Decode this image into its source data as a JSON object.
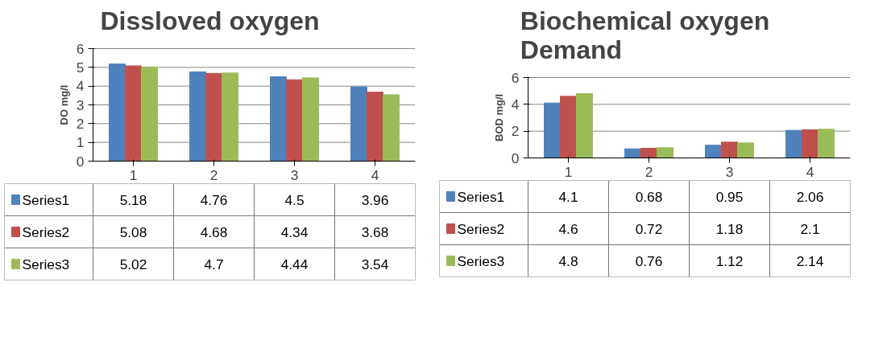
{
  "chart_data": [
    {
      "type": "bar",
      "title": "Dissloved oxygen",
      "ylabel": "DO mg/l",
      "categories": [
        "1",
        "2",
        "3",
        "4"
      ],
      "ylim": [
        0,
        6
      ],
      "yticks": [
        0,
        1,
        2,
        3,
        4,
        5,
        6
      ],
      "grid": "y",
      "legend": "bottom",
      "data_labels": true,
      "series": [
        {
          "name": "Series1",
          "color": "#4f81bd",
          "values": [
            5.18,
            4.76,
            4.5,
            3.96
          ]
        },
        {
          "name": "Series2",
          "color": "#c0504d",
          "values": [
            5.08,
            4.68,
            4.34,
            3.68
          ]
        },
        {
          "name": "Series3",
          "color": "#9bbb59",
          "values": [
            5.02,
            4.7,
            4.44,
            3.54
          ]
        }
      ]
    },
    {
      "type": "bar",
      "title": "Biochemical oxygen\nDemand",
      "ylabel": "BOD mg/l",
      "categories": [
        "1",
        "2",
        "3",
        "4"
      ],
      "ylim": [
        0,
        6
      ],
      "yticks": [
        0,
        2,
        4,
        6
      ],
      "grid": "y",
      "legend": "bottom",
      "data_labels": true,
      "series": [
        {
          "name": "Series1",
          "color": "#4f81bd",
          "values": [
            4.1,
            0.68,
            0.95,
            2.06
          ]
        },
        {
          "name": "Series2",
          "color": "#c0504d",
          "values": [
            4.6,
            0.72,
            1.18,
            2.1
          ]
        },
        {
          "name": "Series3",
          "color": "#9bbb59",
          "values": [
            4.8,
            0.76,
            1.12,
            2.14
          ]
        }
      ]
    }
  ]
}
